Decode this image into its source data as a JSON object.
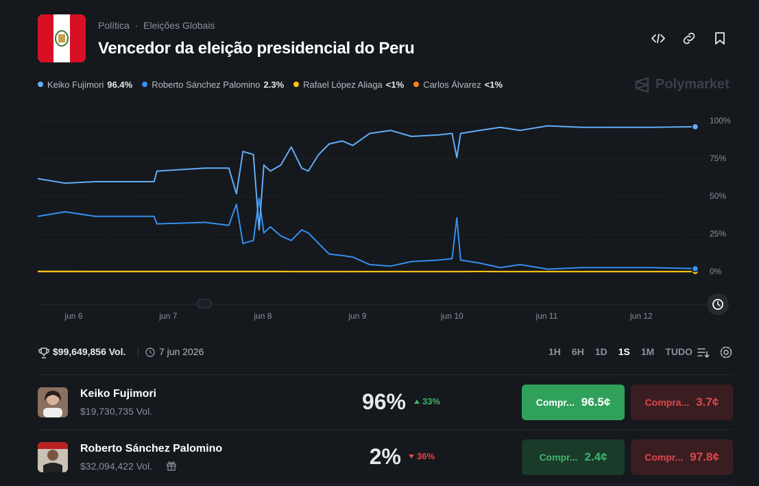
{
  "header": {
    "breadcrumb": [
      "Política",
      "Eleições Globais"
    ],
    "title": "Vencedor da eleição presidencial do Peru",
    "brand": "Polymarket"
  },
  "chart_data": {
    "type": "line",
    "x": [
      5.62,
      5.91,
      6.23,
      6.85,
      6.88,
      7.39,
      7.64,
      7.72,
      7.79,
      7.9,
      7.96,
      8.01,
      8.08,
      8.19,
      8.3,
      8.41,
      8.48,
      8.59,
      8.7,
      8.84,
      8.95,
      9.13,
      9.35,
      9.57,
      9.86,
      10.0,
      10.05,
      10.09,
      10.29,
      10.51,
      10.72,
      11.01,
      11.38,
      11.74,
      12.1,
      12.57
    ],
    "series": [
      {
        "name": "Keiko Fujimori",
        "label": "96.4%",
        "color": "#62aef9",
        "values": [
          62,
          59,
          60,
          60,
          67,
          69,
          69,
          52,
          80,
          78,
          28,
          71,
          67,
          71,
          83,
          69,
          67,
          78,
          85,
          87,
          84,
          92,
          94,
          90,
          91,
          92,
          76,
          92,
          94,
          96,
          94,
          97,
          96,
          96,
          96,
          96.4
        ]
      },
      {
        "name": "Roberto Sánchez Palomino",
        "label": "2.3%",
        "color": "#3590f0",
        "values": [
          37,
          40,
          37,
          37,
          32,
          33,
          31,
          45,
          19,
          21,
          49,
          26,
          30,
          24,
          21,
          28,
          26,
          19,
          12,
          11,
          10,
          5,
          4,
          7,
          8,
          9,
          36,
          8,
          6,
          3,
          5,
          2,
          3,
          3,
          3,
          2.3
        ]
      },
      {
        "name": "Rafael López Aliaga",
        "label": "<1%",
        "color": "#f5c518",
        "values": [
          0.6,
          0.6,
          0.5,
          0.5,
          0.5,
          0.5,
          0.5,
          0.5,
          0.5,
          0.5,
          0.5,
          0.5,
          0.5,
          0.5,
          0.4,
          0.4,
          0.4,
          0.4,
          0.4,
          0.4,
          0.4,
          0.4,
          0.4,
          0.4,
          0.4,
          0.4,
          0.4,
          0.4,
          0.4,
          0.4,
          0.4,
          0.4,
          0.4,
          0.4,
          0.4,
          0.4
        ]
      },
      {
        "name": "Carlos Álvarez",
        "label": "<1%",
        "color": "#f7871c",
        "values": [
          0.3,
          0.3,
          0.3,
          0.3,
          0.3,
          0.3,
          0.3,
          0.3,
          0.3,
          0.3,
          0.3,
          0.3,
          0.3,
          0.3,
          0.3,
          0.3,
          0.3,
          0.3,
          0.3,
          0.3,
          0.3,
          0.3,
          0.3,
          0.3,
          0.3,
          0.3,
          0.3,
          0.3,
          0.5,
          0.3,
          0.3,
          0.3,
          0.3,
          0.3,
          0.3,
          0.3
        ]
      }
    ],
    "xlim": [
      5.62,
      12.57
    ],
    "xticks": [
      {
        "value": 6,
        "label": "jun 6"
      },
      {
        "value": 7,
        "label": "jun 7"
      },
      {
        "value": 8,
        "label": "jun 8"
      },
      {
        "value": 9,
        "label": "jun 9"
      },
      {
        "value": 10,
        "label": "jun 10"
      },
      {
        "value": 11,
        "label": "jun 11"
      },
      {
        "value": 12,
        "label": "jun 12"
      }
    ],
    "ylim": [
      0,
      100
    ],
    "yticks": [
      {
        "value": 0,
        "label": "0%"
      },
      {
        "value": 25,
        "label": "25%"
      },
      {
        "value": 50,
        "label": "50%"
      },
      {
        "value": 75,
        "label": "75%"
      },
      {
        "value": 100,
        "label": "100%"
      }
    ],
    "grid": true
  },
  "market": {
    "volume": "$99,649,856 Vol.",
    "date": "7 jun 2026",
    "ranges": [
      "1H",
      "6H",
      "1D",
      "1S",
      "1M",
      "TUDO"
    ],
    "active_range": "1S"
  },
  "outcomes": [
    {
      "name": "Keiko Fujimori",
      "volume": "$19,730,735 Vol.",
      "chance": "96%",
      "change": "33%",
      "change_dir": "up",
      "buy_label": "Compr...",
      "buy_price": "96.5¢",
      "sell_label": "Compra...",
      "sell_price": "3.7¢"
    },
    {
      "name": "Roberto Sánchez Palomino",
      "volume": "$32,094,422 Vol.",
      "chance": "2%",
      "change": "36%",
      "change_dir": "down",
      "buy_label": "Compr...",
      "buy_price": "2.4¢",
      "sell_label": "Compr...",
      "sell_price": "97.8¢"
    }
  ]
}
